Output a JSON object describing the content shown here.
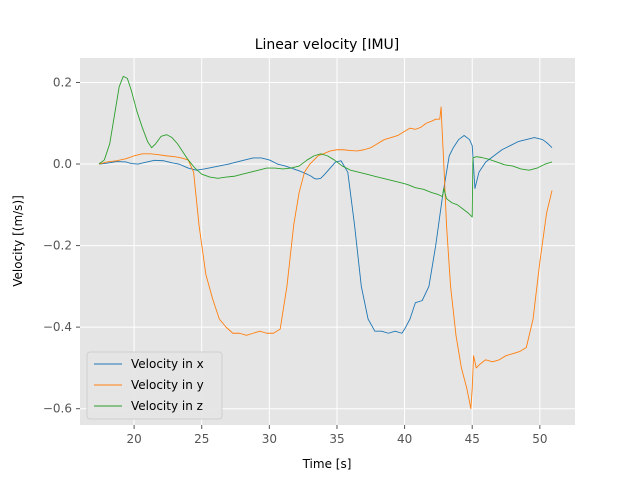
{
  "chart_data": {
    "type": "line",
    "title": "Linear velocity [IMU]",
    "xlabel": "Time [s]",
    "ylabel": "Velocity [(m/s)]",
    "xlim": [
      16.0,
      52.6
    ],
    "ylim": [
      -0.64,
      0.26
    ],
    "xticks": [
      20,
      25,
      30,
      35,
      40,
      45,
      50
    ],
    "yticks": [
      -0.6,
      -0.4,
      -0.2,
      0.0,
      0.2
    ],
    "xtick_labels": [
      "20",
      "25",
      "30",
      "35",
      "40",
      "45",
      "50"
    ],
    "ytick_labels": [
      "−0.6",
      "−0.4",
      "−0.2",
      "0.0",
      "0.2"
    ],
    "grid": true,
    "legend_position": "lower-left",
    "series": [
      {
        "name": "Velocity in x",
        "color": "#1f77b4",
        "x": [
          17.4,
          18.0,
          18.7,
          19.4,
          19.8,
          20.3,
          20.8,
          21.5,
          22.2,
          22.8,
          23.3,
          24.0,
          24.6,
          25.2,
          25.8,
          26.4,
          27.0,
          27.6,
          28.2,
          28.8,
          29.4,
          30.0,
          30.6,
          31.2,
          31.8,
          32.3,
          32.8,
          33.1,
          33.3,
          33.5,
          33.8,
          34.1,
          34.5,
          34.9,
          35.3,
          35.8,
          36.3,
          36.8,
          37.3,
          37.8,
          38.3,
          38.8,
          39.3,
          39.8,
          40.0,
          40.4,
          40.8,
          41.3,
          41.8,
          42.3,
          42.8,
          43.3,
          43.6,
          44.0,
          44.4,
          44.8,
          45.0,
          45.05,
          45.2,
          45.5,
          46.0,
          46.6,
          47.2,
          47.8,
          48.4,
          49.0,
          49.6,
          50.2,
          50.6,
          50.9
        ],
        "y": [
          0.0,
          0.002,
          0.006,
          0.005,
          0.001,
          0.0,
          0.004,
          0.009,
          0.008,
          0.003,
          0.0,
          -0.01,
          -0.015,
          -0.012,
          -0.008,
          -0.004,
          0.0,
          0.005,
          0.01,
          0.015,
          0.015,
          0.01,
          0.0,
          -0.005,
          -0.012,
          -0.018,
          -0.025,
          -0.03,
          -0.035,
          -0.037,
          -0.035,
          -0.025,
          -0.01,
          0.005,
          0.008,
          -0.02,
          -0.15,
          -0.3,
          -0.38,
          -0.41,
          -0.41,
          -0.415,
          -0.41,
          -0.415,
          -0.405,
          -0.38,
          -0.34,
          -0.335,
          -0.3,
          -0.2,
          -0.08,
          0.02,
          0.04,
          0.06,
          0.07,
          0.06,
          0.045,
          0.02,
          -0.06,
          -0.02,
          0.005,
          0.02,
          0.035,
          0.045,
          0.055,
          0.06,
          0.065,
          0.06,
          0.05,
          0.04
        ]
      },
      {
        "name": "Velocity in y",
        "color": "#ff7f0e",
        "x": [
          17.4,
          18.0,
          18.7,
          19.4,
          20.0,
          20.6,
          21.2,
          21.8,
          22.4,
          23.0,
          23.5,
          24.0,
          24.4,
          24.8,
          25.3,
          25.8,
          26.3,
          26.8,
          27.3,
          27.8,
          28.3,
          28.8,
          29.3,
          29.8,
          30.3,
          30.8,
          31.3,
          31.8,
          32.2,
          32.6,
          33.0,
          33.3,
          33.6,
          34.0,
          34.5,
          35.0,
          35.5,
          36.0,
          36.5,
          37.0,
          37.5,
          38.0,
          38.5,
          39.0,
          39.5,
          40.0,
          40.4,
          40.8,
          41.2,
          41.6,
          42.0,
          42.3,
          42.6,
          42.7,
          42.75,
          42.9,
          43.1,
          43.4,
          43.8,
          44.2,
          44.6,
          44.9,
          45.0,
          45.1,
          45.3,
          45.6,
          46.0,
          46.5,
          47.0,
          47.5,
          48.0,
          48.5,
          49.0,
          49.5,
          50.0,
          50.5,
          50.9
        ],
        "y": [
          0.0,
          0.005,
          0.008,
          0.013,
          0.02,
          0.025,
          0.025,
          0.023,
          0.02,
          0.018,
          0.015,
          0.01,
          -0.02,
          -0.15,
          -0.27,
          -0.33,
          -0.38,
          -0.4,
          -0.415,
          -0.415,
          -0.42,
          -0.415,
          -0.41,
          -0.415,
          -0.415,
          -0.405,
          -0.3,
          -0.15,
          -0.07,
          -0.02,
          0.0,
          0.01,
          0.02,
          0.025,
          0.032,
          0.035,
          0.035,
          0.033,
          0.032,
          0.035,
          0.04,
          0.05,
          0.06,
          0.065,
          0.07,
          0.08,
          0.088,
          0.085,
          0.09,
          0.1,
          0.105,
          0.11,
          0.11,
          0.14,
          0.1,
          0.0,
          -0.15,
          -0.3,
          -0.42,
          -0.5,
          -0.55,
          -0.6,
          -0.55,
          -0.47,
          -0.5,
          -0.49,
          -0.48,
          -0.485,
          -0.48,
          -0.47,
          -0.465,
          -0.46,
          -0.45,
          -0.38,
          -0.24,
          -0.12,
          -0.065
        ]
      },
      {
        "name": "Velocity in z",
        "color": "#2ca02c",
        "x": [
          17.4,
          17.8,
          18.2,
          18.6,
          18.9,
          19.2,
          19.5,
          19.8,
          20.2,
          20.6,
          21.0,
          21.3,
          21.6,
          22.0,
          22.4,
          22.8,
          23.2,
          23.6,
          24.0,
          24.5,
          25.0,
          25.6,
          26.2,
          26.8,
          27.4,
          28.0,
          28.6,
          29.2,
          29.8,
          30.4,
          31.0,
          31.6,
          32.2,
          32.8,
          33.3,
          33.8,
          34.3,
          34.8,
          35.4,
          36.0,
          36.6,
          37.2,
          37.8,
          38.4,
          39.0,
          39.6,
          40.2,
          40.8,
          41.4,
          42.0,
          42.5,
          42.8,
          42.9,
          43.1,
          43.5,
          43.9,
          44.3,
          44.7,
          45.0,
          45.05,
          45.3,
          45.7,
          46.2,
          46.8,
          47.4,
          48.0,
          48.6,
          49.2,
          49.8,
          50.4,
          50.9
        ],
        "y": [
          0.0,
          0.01,
          0.05,
          0.13,
          0.19,
          0.215,
          0.21,
          0.18,
          0.13,
          0.09,
          0.055,
          0.04,
          0.05,
          0.068,
          0.072,
          0.065,
          0.05,
          0.03,
          0.01,
          -0.01,
          -0.025,
          -0.032,
          -0.035,
          -0.032,
          -0.03,
          -0.025,
          -0.02,
          -0.015,
          -0.01,
          -0.01,
          -0.012,
          -0.01,
          -0.005,
          0.01,
          0.02,
          0.025,
          0.02,
          0.01,
          -0.005,
          -0.015,
          -0.02,
          -0.025,
          -0.03,
          -0.035,
          -0.04,
          -0.045,
          -0.05,
          -0.058,
          -0.062,
          -0.07,
          -0.075,
          -0.08,
          -0.06,
          -0.085,
          -0.095,
          -0.1,
          -0.11,
          -0.12,
          -0.13,
          0.015,
          0.018,
          0.016,
          0.012,
          0.005,
          -0.002,
          -0.005,
          -0.012,
          -0.015,
          -0.01,
          0.0,
          0.005
        ]
      }
    ]
  }
}
